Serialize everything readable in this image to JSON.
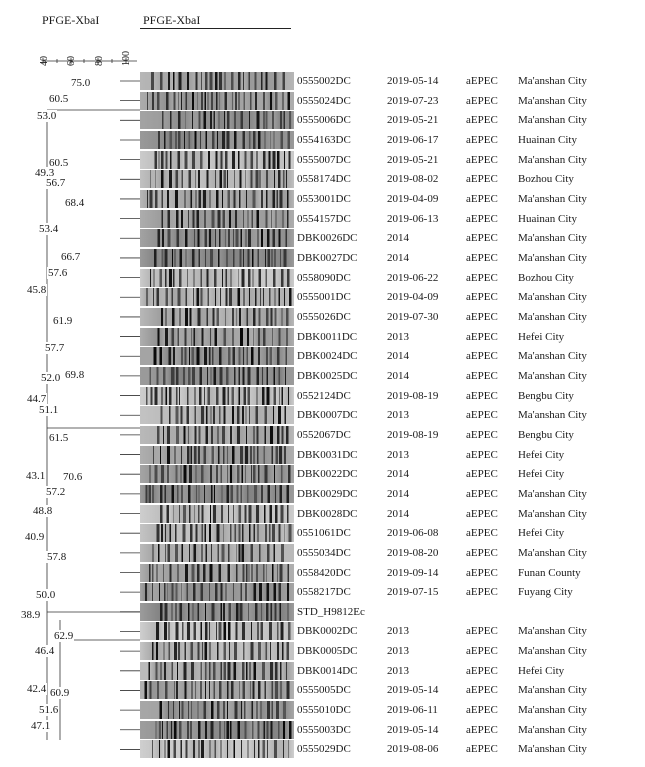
{
  "headers": {
    "dendrogram": "PFGE-XbaI",
    "gel": "PFGE-XbaI"
  },
  "scale_ticks": [
    "40",
    "60",
    "80",
    "100"
  ],
  "node_labels": [
    "75.0",
    "60.5",
    "53.0",
    "60.5",
    "49.3",
    "56.7",
    "68.4",
    "53.4",
    "66.7",
    "57.6",
    "45.8",
    "61.9",
    "57.7",
    "52.0",
    "69.8",
    "44.7",
    "51.1",
    "61.5",
    "43.1",
    "70.6",
    "57.2",
    "48.8",
    "40.9",
    "57.8",
    "50.0",
    "38.9",
    "62.9",
    "46.4",
    "42.4",
    "60.9",
    "51.6",
    "47.1"
  ],
  "isolates": [
    {
      "id": "0555002DC",
      "date": "2019-05-14",
      "type": "aEPEC",
      "location": "Ma'anshan City"
    },
    {
      "id": "0555024DC",
      "date": "2019-07-23",
      "type": "aEPEC",
      "location": "Ma'anshan City"
    },
    {
      "id": "0555006DC",
      "date": "2019-05-21",
      "type": "aEPEC",
      "location": "Ma'anshan City"
    },
    {
      "id": "0554163DC",
      "date": "2019-06-17",
      "type": "aEPEC",
      "location": "Huainan City"
    },
    {
      "id": "0555007DC",
      "date": "2019-05-21",
      "type": "aEPEC",
      "location": "Ma'anshan City"
    },
    {
      "id": "0558174DC",
      "date": "2019-08-02",
      "type": "aEPEC",
      "location": "Bozhou City"
    },
    {
      "id": "0553001DC",
      "date": "2019-04-09",
      "type": "aEPEC",
      "location": "Ma'anshan City"
    },
    {
      "id": "0554157DC",
      "date": "2019-06-13",
      "type": "aEPEC",
      "location": "Huainan City"
    },
    {
      "id": "DBK0026DC",
      "date": "2014",
      "type": "aEPEC",
      "location": "Ma'anshan City"
    },
    {
      "id": "DBK0027DC",
      "date": "2014",
      "type": "aEPEC",
      "location": "Ma'anshan City"
    },
    {
      "id": "0558090DC",
      "date": "2019-06-22",
      "type": "aEPEC",
      "location": "Bozhou City"
    },
    {
      "id": "0555001DC",
      "date": "2019-04-09",
      "type": "aEPEC",
      "location": "Ma'anshan City"
    },
    {
      "id": "0555026DC",
      "date": "2019-07-30",
      "type": "aEPEC",
      "location": "Ma'anshan City"
    },
    {
      "id": "DBK0011DC",
      "date": "2013",
      "type": "aEPEC",
      "location": "Hefei City"
    },
    {
      "id": "DBK0024DC",
      "date": "2014",
      "type": "aEPEC",
      "location": "Ma'anshan City"
    },
    {
      "id": "DBK0025DC",
      "date": "2014",
      "type": "aEPEC",
      "location": "Ma'anshan City"
    },
    {
      "id": "0552124DC",
      "date": "2019-08-19",
      "type": "aEPEC",
      "location": "Bengbu City"
    },
    {
      "id": "DBK0007DC",
      "date": "2013",
      "type": "aEPEC",
      "location": "Ma'anshan City"
    },
    {
      "id": "0552067DC",
      "date": "2019-08-19",
      "type": "aEPEC",
      "location": "Bengbu City"
    },
    {
      "id": "DBK0031DC",
      "date": "2013",
      "type": "aEPEC",
      "location": "Hefei City"
    },
    {
      "id": "DBK0022DC",
      "date": "2014",
      "type": "aEPEC",
      "location": "Hefei City"
    },
    {
      "id": "DBK0029DC",
      "date": "2014",
      "type": "aEPEC",
      "location": "Ma'anshan City"
    },
    {
      "id": "DBK0028DC",
      "date": "2014",
      "type": "aEPEC",
      "location": "Ma'anshan City"
    },
    {
      "id": "0551061DC",
      "date": "2019-06-08",
      "type": "aEPEC",
      "location": "Hefei City"
    },
    {
      "id": "0555034DC",
      "date": "2019-08-20",
      "type": "aEPEC",
      "location": "Ma'anshan City"
    },
    {
      "id": "0558420DC",
      "date": "2019-09-14",
      "type": "aEPEC",
      "location": "Funan County"
    },
    {
      "id": "0558217DC",
      "date": "2019-07-15",
      "type": "aEPEC",
      "location": "Fuyang City"
    },
    {
      "id": "STD_H9812Ec",
      "date": "",
      "type": "",
      "location": ""
    },
    {
      "id": "DBK0002DC",
      "date": "2013",
      "type": "aEPEC",
      "location": "Ma'anshan City"
    },
    {
      "id": "DBK0005DC",
      "date": "2013",
      "type": "aEPEC",
      "location": "Ma'anshan City"
    },
    {
      "id": "DBK0014DC",
      "date": "2013",
      "type": "aEPEC",
      "location": "Hefei City"
    },
    {
      "id": "0555005DC",
      "date": "2019-05-14",
      "type": "aEPEC",
      "location": "Ma'anshan City"
    },
    {
      "id": "0555010DC",
      "date": "2019-06-11",
      "type": "aEPEC",
      "location": "Ma'anshan City"
    },
    {
      "id": "0555003DC",
      "date": "2019-05-14",
      "type": "aEPEC",
      "location": "Ma'anshan City"
    },
    {
      "id": "0555029DC",
      "date": "2019-08-06",
      "type": "aEPEC",
      "location": "Ma'anshan City"
    }
  ]
}
